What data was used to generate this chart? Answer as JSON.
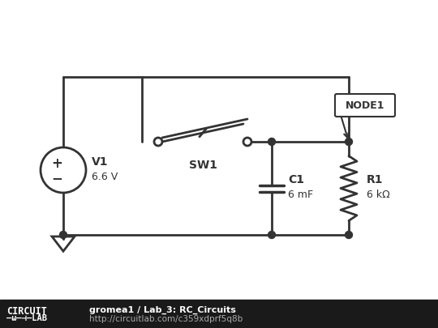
{
  "bg_color": "#ffffff",
  "footer_bg": "#1a1a1a",
  "circuit_color": "#333333",
  "node_color": "#333333",
  "lw": 2.0,
  "footer_text1": "gromea1 / Lab_3: RC_Circuits",
  "footer_text2": "http://circuitlab.com/c359xdprf5q8b",
  "footer_logo_text1": "CIRCUIT",
  "footer_logo_text2": "-ω—⊣—LAB",
  "node1_label": "NODE1",
  "sw_label": "SW1",
  "v1_label": "V1\n6.6 V",
  "c1_label": "C1\n6 mF",
  "r1_label": "R1\n6 kΩ"
}
